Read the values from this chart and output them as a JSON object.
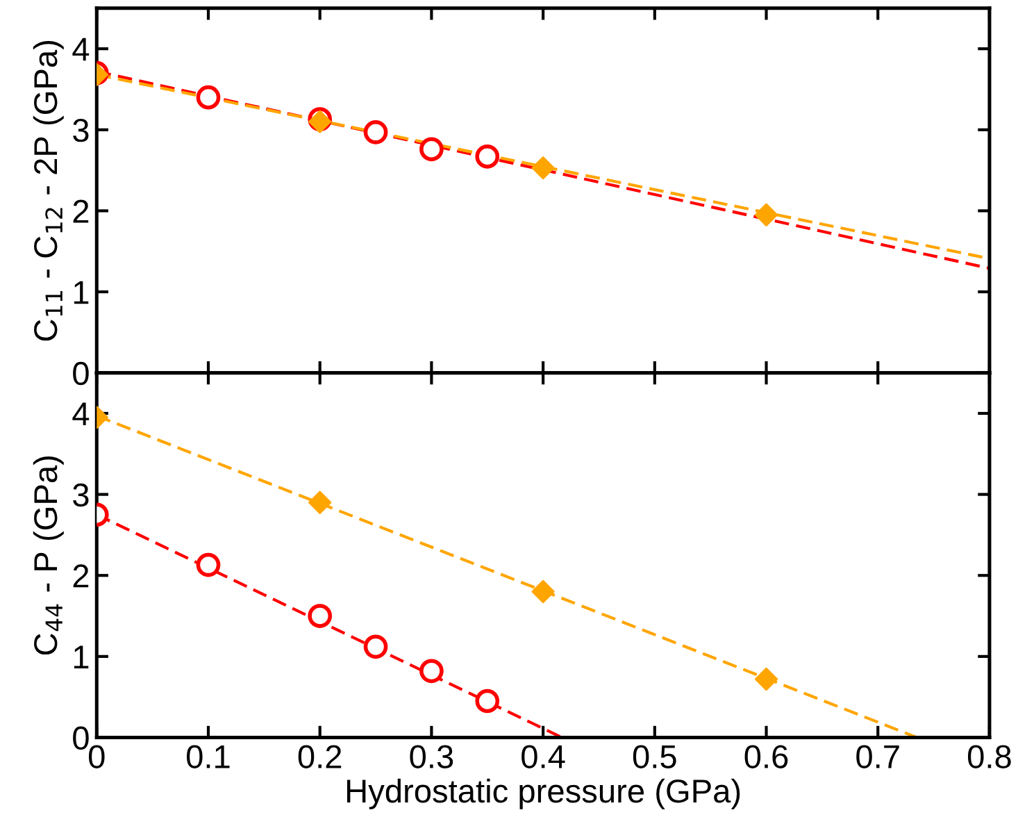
{
  "chart_data": [
    {
      "type": "scatter",
      "ylabel": "C$_{11}$ - C$_{12}$ - 2P (GPa)",
      "xlim": [
        0,
        0.8
      ],
      "xticks": [
        0,
        0.1,
        0.2,
        0.3,
        0.4,
        0.5,
        0.6,
        0.7,
        0.8
      ],
      "ylim": [
        0,
        4.5
      ],
      "yticks": [
        0,
        1,
        2,
        3,
        4
      ],
      "tick_labels": "y",
      "grid": false,
      "legend": false,
      "series": [
        {
          "type": "line",
          "color": "#ff0000",
          "line_style": "dashed",
          "marker": "none",
          "x": [
            0,
            0.8
          ],
          "values": [
            3.72,
            1.29
          ]
        },
        {
          "type": "line",
          "color": "#ffa500",
          "line_style": "dashed",
          "marker": "none",
          "x": [
            0,
            0.8
          ],
          "values": [
            3.68,
            1.41
          ]
        },
        {
          "color": "#ff0000",
          "marker": "circle",
          "x": [
            0,
            0.1,
            0.2,
            0.25,
            0.3,
            0.35
          ],
          "values": [
            3.7,
            3.4,
            3.13,
            2.97,
            2.76,
            2.67
          ]
        },
        {
          "color": "#ffa500",
          "marker": "diamond",
          "x": [
            0,
            0.2,
            0.4,
            0.6
          ],
          "values": [
            3.68,
            3.1,
            2.53,
            1.95
          ]
        }
      ]
    },
    {
      "type": "scatter",
      "xlabel": "Hydrostatic pressure (GPa)",
      "ylabel": "C$_{44}$ - P (GPa)",
      "xlim": [
        0,
        0.8
      ],
      "xticks": [
        0,
        0.1,
        0.2,
        0.3,
        0.4,
        0.5,
        0.6,
        0.7,
        0.8
      ],
      "ylim": [
        0,
        4.5
      ],
      "yticks": [
        0,
        1,
        2,
        3,
        4
      ],
      "grid": false,
      "legend": false,
      "series": [
        {
          "type": "line",
          "color": "#ff0000",
          "line_style": "dashed",
          "marker": "none",
          "x": [
            0,
            0.417
          ],
          "values": [
            2.75,
            0
          ]
        },
        {
          "type": "line",
          "color": "#ffa500",
          "line_style": "dashed",
          "marker": "none",
          "x": [
            0,
            0.735
          ],
          "values": [
            3.97,
            0
          ]
        },
        {
          "color": "#ff0000",
          "marker": "circle",
          "x": [
            0,
            0.1,
            0.2,
            0.25,
            0.3,
            0.35
          ],
          "values": [
            2.75,
            2.13,
            1.5,
            1.12,
            0.82,
            0.45
          ]
        },
        {
          "color": "#ffa500",
          "marker": "diamond",
          "x": [
            0,
            0.2,
            0.4,
            0.6
          ],
          "values": [
            3.95,
            2.9,
            1.8,
            0.72
          ]
        }
      ]
    }
  ]
}
